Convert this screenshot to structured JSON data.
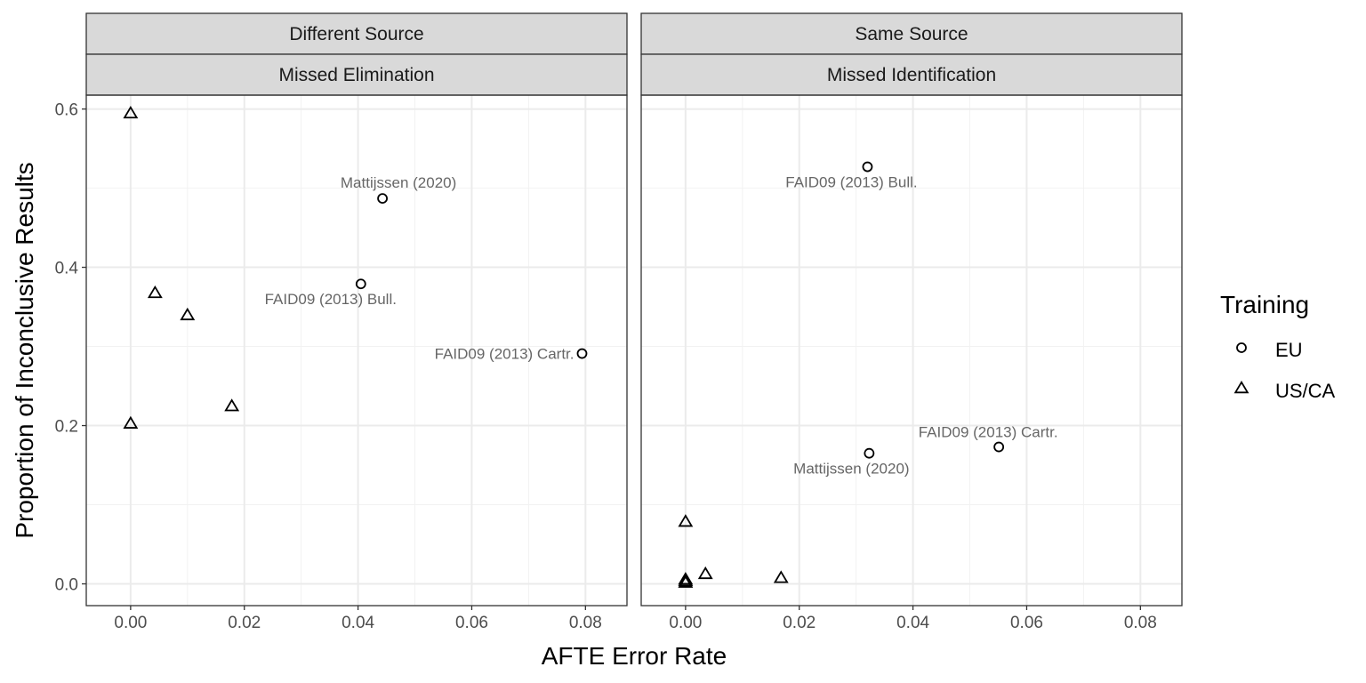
{
  "chart_data": {
    "type": "scatter",
    "xlabel": "AFTE Error Rate",
    "ylabel": "Proportion of Inconclusive Results",
    "xlim": [
      -0.0078,
      0.0873
    ],
    "ylim": [
      -0.0275,
      0.6175
    ],
    "x_ticks": [
      0.0,
      0.02,
      0.04,
      0.06,
      0.08
    ],
    "x_tick_labels": [
      "0.00",
      "0.02",
      "0.04",
      "0.06",
      "0.08"
    ],
    "y_ticks": [
      0.0,
      0.2,
      0.4,
      0.6
    ],
    "y_tick_labels": [
      "0.0",
      "0.2",
      "0.4",
      "0.6"
    ],
    "grid": true,
    "legend": {
      "title": "Training",
      "position": "right",
      "entries": [
        {
          "label": "EU",
          "shape": "circle"
        },
        {
          "label": "US/CA",
          "shape": "triangle"
        }
      ]
    },
    "panels": [
      {
        "strip_top": "Different Source",
        "strip_bottom": "Missed Elimination",
        "points": [
          {
            "group": "EU",
            "x": 0.0443,
            "y": 0.487,
            "label": "Mattijssen (2020)"
          },
          {
            "group": "EU",
            "x": 0.0405,
            "y": 0.379,
            "label": "FAID09 (2013) Bull."
          },
          {
            "group": "EU",
            "x": 0.0794,
            "y": 0.291,
            "label": "FAID09 (2013) Cartr."
          },
          {
            "group": "US/CA",
            "x": 0.0,
            "y": 0.594
          },
          {
            "group": "US/CA",
            "x": 0.0043,
            "y": 0.367
          },
          {
            "group": "US/CA",
            "x": 0.01,
            "y": 0.339
          },
          {
            "group": "US/CA",
            "x": 0.0178,
            "y": 0.224
          },
          {
            "group": "US/CA",
            "x": 0.0,
            "y": 0.202
          }
        ]
      },
      {
        "strip_top": "Same Source",
        "strip_bottom": "Missed Identification",
        "points": [
          {
            "group": "EU",
            "x": 0.032,
            "y": 0.527,
            "label": "FAID09 (2013) Bull."
          },
          {
            "group": "EU",
            "x": 0.0323,
            "y": 0.165,
            "label": "Mattijssen (2020)"
          },
          {
            "group": "EU",
            "x": 0.0551,
            "y": 0.173,
            "label": "FAID09 (2013) Cartr."
          },
          {
            "group": "US/CA",
            "x": 0.0,
            "y": 0.078
          },
          {
            "group": "US/CA",
            "x": 0.0035,
            "y": 0.012
          },
          {
            "group": "US/CA",
            "x": 0.0168,
            "y": 0.007
          },
          {
            "group": "US/CA",
            "x": 0.0,
            "y": 0.005
          },
          {
            "group": "US/CA",
            "x": 0.0,
            "y": 0.003
          },
          {
            "group": "US/CA",
            "x": 0.0,
            "y": 0.001
          }
        ]
      }
    ]
  }
}
